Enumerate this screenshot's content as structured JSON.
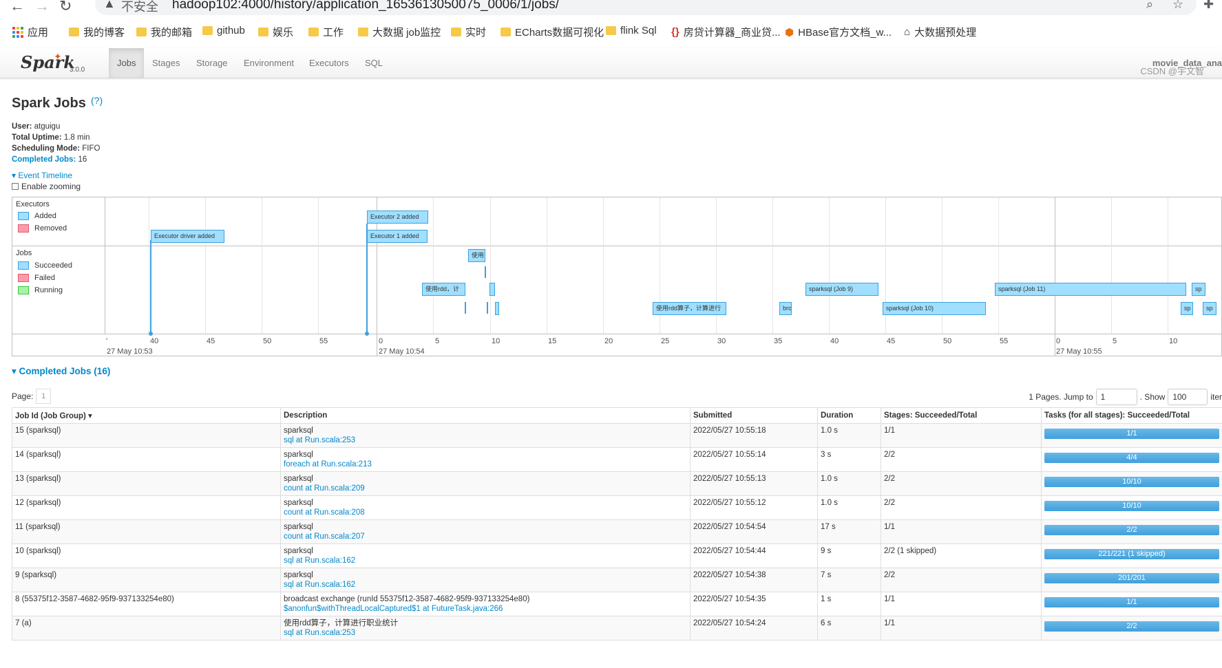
{
  "browser": {
    "insecure_label": "不安全",
    "url": "hadoop102:4000/history/application_1653613050075_0006/1/jobs/",
    "bookmarks": [
      {
        "label": "应用",
        "kind": "apps"
      },
      {
        "label": "我的博客",
        "kind": "folder"
      },
      {
        "label": "我的邮箱",
        "kind": "folder"
      },
      {
        "label": "github",
        "kind": "folder"
      },
      {
        "label": "娱乐",
        "kind": "folder"
      },
      {
        "label": "工作",
        "kind": "folder"
      },
      {
        "label": "大数据 job监控",
        "kind": "folder"
      },
      {
        "label": "实时",
        "kind": "folder"
      },
      {
        "label": "ECharts数据可视化",
        "kind": "folder"
      },
      {
        "label": "flink Sql",
        "kind": "folder"
      },
      {
        "label": "房贷计算器_商业贷...",
        "kind": "braces"
      },
      {
        "label": "HBase官方文档_w...",
        "kind": "hbase"
      },
      {
        "label": "大数据预处理",
        "kind": "home"
      }
    ]
  },
  "navbar": {
    "brand": "Spark",
    "version": "3.0.0",
    "tabs": [
      "Jobs",
      "Stages",
      "Storage",
      "Environment",
      "Executors",
      "SQL"
    ],
    "active_tab": "Jobs",
    "app_name": "movie_data_ana"
  },
  "page": {
    "title": "Spark Jobs",
    "help": "(?)",
    "user_label": "User:",
    "user": "atguigu",
    "uptime_label": "Total Uptime:",
    "uptime": "1.8 min",
    "sched_label": "Scheduling Mode:",
    "sched": "FIFO",
    "completed_label": "Completed Jobs:",
    "completed": "16",
    "event_timeline": "Event Timeline",
    "enable_zooming": "Enable zooming"
  },
  "timeline": {
    "executors_title": "Executors",
    "executor_legend": [
      "Added",
      "Removed"
    ],
    "jobs_title": "Jobs",
    "job_legend": [
      "Succeeded",
      "Failed",
      "Running"
    ],
    "colors": {
      "added": "#a0dfff",
      "removed": "#ff9aa8",
      "succeeded": "#a0dfff",
      "failed": "#ff9aa8",
      "running": "#a3f5a3"
    },
    "ticks": [
      "40",
      "45",
      "50",
      "55",
      "0",
      "5",
      "10",
      "15",
      "20",
      "25",
      "30",
      "35",
      "40",
      "45",
      "50",
      "55",
      "0",
      "5",
      "10"
    ],
    "major_labels": [
      "27 May 10:53",
      "27 May 10:54",
      "27 May 10:55"
    ],
    "events": [
      "Executor driver added",
      "Executor 2 added",
      "Executor 1 added"
    ],
    "job_boxes": [
      "使用",
      "使用rdd，计",
      "使用rdd算子，计算进行",
      "bro",
      "sparksql (Job 9)",
      "sparksql (Job 10)",
      "sparksql (Job 11)",
      "sp",
      "sp",
      "sp"
    ]
  },
  "completed_jobs": {
    "header": "Completed Jobs (16)",
    "page_label": "Page:",
    "page": "1",
    "pages_text": "1 Pages. Jump to",
    "jump_value": "1",
    "show_label": ". Show",
    "show_value": "100",
    "items_label": "iter",
    "columns": [
      "Job Id (Job Group) ▾",
      "Description",
      "Submitted",
      "Duration",
      "Stages: Succeeded/Total",
      "Tasks (for all stages): Succeeded/Total"
    ],
    "rows": [
      {
        "id": "15 (sparksql)",
        "desc": "sparksql",
        "link": "sql at Run.scala:253",
        "submitted": "2022/05/27 10:55:18",
        "duration": "1.0 s",
        "stages": "1/1",
        "tasks": "1/1"
      },
      {
        "id": "14 (sparksql)",
        "desc": "sparksql",
        "link": "foreach at Run.scala:213",
        "submitted": "2022/05/27 10:55:14",
        "duration": "3 s",
        "stages": "2/2",
        "tasks": "4/4"
      },
      {
        "id": "13 (sparksql)",
        "desc": "sparksql",
        "link": "count at Run.scala:209",
        "submitted": "2022/05/27 10:55:13",
        "duration": "1.0 s",
        "stages": "2/2",
        "tasks": "10/10"
      },
      {
        "id": "12 (sparksql)",
        "desc": "sparksql",
        "link": "count at Run.scala:208",
        "submitted": "2022/05/27 10:55:12",
        "duration": "1.0 s",
        "stages": "2/2",
        "tasks": "10/10"
      },
      {
        "id": "11 (sparksql)",
        "desc": "sparksql",
        "link": "count at Run.scala:207",
        "submitted": "2022/05/27 10:54:54",
        "duration": "17 s",
        "stages": "1/1",
        "tasks": "2/2"
      },
      {
        "id": "10 (sparksql)",
        "desc": "sparksql",
        "link": "sql at Run.scala:162",
        "submitted": "2022/05/27 10:54:44",
        "duration": "9 s",
        "stages": "2/2 (1 skipped)",
        "tasks": "221/221 (1 skipped)"
      },
      {
        "id": "9 (sparksql)",
        "desc": "sparksql",
        "link": "sql at Run.scala:162",
        "submitted": "2022/05/27 10:54:38",
        "duration": "7 s",
        "stages": "2/2",
        "tasks": "201/201"
      },
      {
        "id": "8 (55375f12-3587-4682-95f9-937133254e80)",
        "desc": "broadcast exchange (runId 55375f12-3587-4682-95f9-937133254e80)",
        "link": "$anonfun$withThreadLocalCaptured$1 at FutureTask.java:266",
        "submitted": "2022/05/27 10:54:35",
        "duration": "1 s",
        "stages": "1/1",
        "tasks": "1/1"
      },
      {
        "id": "7 (a)",
        "desc": "使用rdd算子，计算进行职业统计",
        "link": "sql at Run.scala:253",
        "submitted": "2022/05/27 10:54:24",
        "duration": "6 s",
        "stages": "1/1",
        "tasks": "2/2"
      }
    ]
  },
  "watermark": "CSDN @宇文智"
}
